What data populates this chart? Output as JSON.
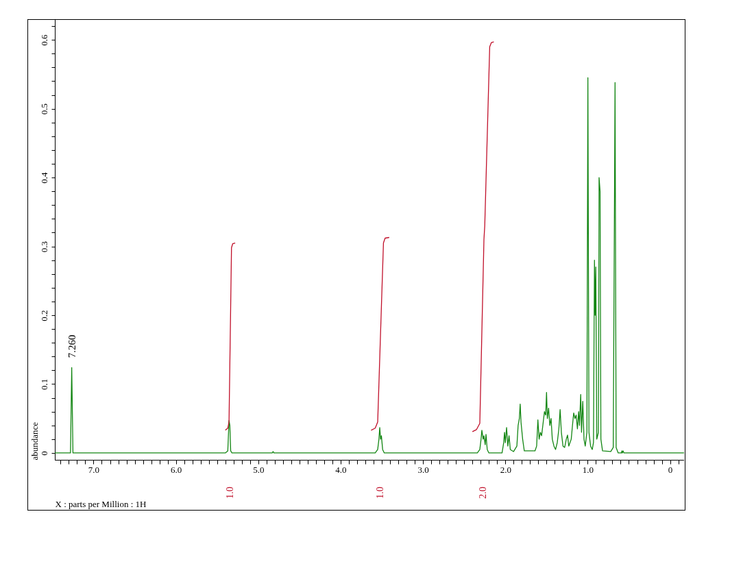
{
  "chart_data": {
    "type": "line",
    "xlabel": "X : parts per Million : 1H",
    "ylabel": "abundance",
    "xlim": [
      7.47,
      -0.17
    ],
    "ylim": [
      -0.01,
      0.63
    ],
    "xticks": [
      {
        "value": 7.4,
        "label": null
      },
      {
        "value": 7.3,
        "label": null
      },
      {
        "value": 7.2,
        "label": null
      },
      {
        "value": 7.1,
        "label": null
      },
      {
        "value": 7,
        "label": "7.0"
      },
      {
        "value": 6.9,
        "label": null
      },
      {
        "value": 6.8,
        "label": null
      },
      {
        "value": 6.7,
        "label": null
      },
      {
        "value": 6.6,
        "label": null
      },
      {
        "value": 6.5,
        "label": null
      },
      {
        "value": 6.4,
        "label": null
      },
      {
        "value": 6.3,
        "label": null
      },
      {
        "value": 6.2,
        "label": null
      },
      {
        "value": 6.1,
        "label": null
      },
      {
        "value": 6,
        "label": "6.0"
      },
      {
        "value": 5.9,
        "label": null
      },
      {
        "value": 5.8,
        "label": null
      },
      {
        "value": 5.7,
        "label": null
      },
      {
        "value": 5.6,
        "label": null
      },
      {
        "value": 5.5,
        "label": null
      },
      {
        "value": 5.4,
        "label": null
      },
      {
        "value": 5.3,
        "label": null
      },
      {
        "value": 5.2,
        "label": null
      },
      {
        "value": 5.1,
        "label": null
      },
      {
        "value": 5,
        "label": "5.0"
      },
      {
        "value": 4.9,
        "label": null
      },
      {
        "value": 4.8,
        "label": null
      },
      {
        "value": 4.7,
        "label": null
      },
      {
        "value": 4.6,
        "label": null
      },
      {
        "value": 4.5,
        "label": null
      },
      {
        "value": 4.4,
        "label": null
      },
      {
        "value": 4.3,
        "label": null
      },
      {
        "value": 4.2,
        "label": null
      },
      {
        "value": 4.1,
        "label": null
      },
      {
        "value": 4,
        "label": "4.0"
      },
      {
        "value": 3.9,
        "label": null
      },
      {
        "value": 3.8,
        "label": null
      },
      {
        "value": 3.7,
        "label": null
      },
      {
        "value": 3.6,
        "label": null
      },
      {
        "value": 3.5,
        "label": null
      },
      {
        "value": 3.4,
        "label": null
      },
      {
        "value": 3.3,
        "label": null
      },
      {
        "value": 3.2,
        "label": null
      },
      {
        "value": 3.1,
        "label": null
      },
      {
        "value": 3,
        "label": "3.0"
      },
      {
        "value": 2.9,
        "label": null
      },
      {
        "value": 2.8,
        "label": null
      },
      {
        "value": 2.7,
        "label": null
      },
      {
        "value": 2.6,
        "label": null
      },
      {
        "value": 2.5,
        "label": null
      },
      {
        "value": 2.4,
        "label": null
      },
      {
        "value": 2.3,
        "label": null
      },
      {
        "value": 2.2,
        "label": null
      },
      {
        "value": 2.1,
        "label": null
      },
      {
        "value": 2,
        "label": "2.0"
      },
      {
        "value": 1.9,
        "label": null
      },
      {
        "value": 1.8,
        "label": null
      },
      {
        "value": 1.7,
        "label": null
      },
      {
        "value": 1.6,
        "label": null
      },
      {
        "value": 1.5,
        "label": null
      },
      {
        "value": 1.4,
        "label": null
      },
      {
        "value": 1.3,
        "label": null
      },
      {
        "value": 1.2,
        "label": null
      },
      {
        "value": 1.1,
        "label": null
      },
      {
        "value": 1,
        "label": "1.0"
      },
      {
        "value": 0.9,
        "label": null
      },
      {
        "value": 0.8,
        "label": null
      },
      {
        "value": 0.7,
        "label": null
      },
      {
        "value": 0.6,
        "label": null
      },
      {
        "value": 0.5,
        "label": null
      },
      {
        "value": 0.4,
        "label": null
      },
      {
        "value": 0.3,
        "label": null
      },
      {
        "value": 0.2,
        "label": null
      },
      {
        "value": 0.1,
        "label": null
      },
      0,
      {
        "value": -0.1,
        "label": null
      }
    ],
    "yticks": [
      0,
      {
        "value": 0.02,
        "label": null
      },
      {
        "value": 0.04,
        "label": null
      },
      {
        "value": 0.06,
        "label": null
      },
      {
        "value": 0.08,
        "label": null
      },
      0.1,
      {
        "value": 0.12,
        "label": null
      },
      {
        "value": 0.14,
        "label": null
      },
      {
        "value": 0.16,
        "label": null
      },
      {
        "value": 0.18,
        "label": null
      },
      0.2,
      {
        "value": 0.22,
        "label": null
      },
      {
        "value": 0.24,
        "label": null
      },
      {
        "value": 0.26,
        "label": null
      },
      {
        "value": 0.28,
        "label": null
      },
      0.3,
      {
        "value": 0.32,
        "label": null
      },
      {
        "value": 0.34,
        "label": null
      },
      {
        "value": 0.36,
        "label": null
      },
      {
        "value": 0.38,
        "label": null
      },
      0.4,
      {
        "value": 0.42,
        "label": null
      },
      {
        "value": 0.44,
        "label": null
      },
      {
        "value": 0.46,
        "label": null
      },
      {
        "value": 0.48,
        "label": null
      },
      0.5,
      {
        "value": 0.52,
        "label": null
      },
      {
        "value": 0.54,
        "label": null
      },
      {
        "value": 0.56,
        "label": null
      },
      {
        "value": 0.58,
        "label": null
      },
      0.6,
      {
        "value": 0.62,
        "label": null
      }
    ],
    "annotations": [
      {
        "text": "7.260",
        "x": 7.26,
        "y": 0.124
      },
      "1.0",
      "1.0",
      "2.0"
    ],
    "series": [
      {
        "type": "line",
        "color": "#138613",
        "x": [
          7.47,
          7.28,
          7.265,
          7.25,
          5.4,
          5.37,
          5.355,
          5.345,
          5.335,
          5.32,
          4.83,
          4.82,
          4.81,
          3.58,
          3.55,
          3.535,
          3.525,
          3.515,
          3.505,
          3.49,
          3.47,
          2.34,
          2.31,
          2.295,
          2.285,
          2.27,
          2.26,
          2.245,
          2.235,
          2.22,
          2.2,
          2.04,
          2.02,
          2.01,
          2.0,
          1.985,
          1.97,
          1.955,
          1.94,
          1.9,
          1.86,
          1.845,
          1.83,
          1.82,
          1.81,
          1.79,
          1.77,
          1.64,
          1.62,
          1.605,
          1.59,
          1.575,
          1.56,
          1.54,
          1.525,
          1.51,
          1.5,
          1.49,
          1.475,
          1.46,
          1.445,
          1.43,
          1.41,
          1.39,
          1.37,
          1.35,
          1.335,
          1.32,
          1.3,
          1.28,
          1.26,
          1.245,
          1.23,
          1.2,
          1.185,
          1.17,
          1.155,
          1.14,
          1.125,
          1.11,
          1.1,
          1.085,
          1.075,
          1.06,
          1.045,
          1.03,
          1.01,
          0.998,
          0.985,
          0.965,
          0.945,
          0.93,
          0.918,
          0.91,
          0.902,
          0.89,
          0.87,
          0.862,
          0.856,
          0.85,
          0.84,
          0.82,
          0.72,
          0.69,
          0.668,
          0.655,
          0.63,
          0.59,
          0.585,
          0.58,
          0.57,
          0.56,
          -0.17
        ],
        "values": [
          0,
          0,
          0.124,
          0,
          0,
          0.003,
          0.047,
          0.04,
          0.003,
          0,
          0,
          0.002,
          0,
          0,
          0.005,
          0.02,
          0.037,
          0.02,
          0.025,
          0.005,
          0,
          0,
          0.005,
          0.02,
          0.033,
          0.02,
          0.025,
          0.012,
          0.027,
          0.005,
          0,
          0,
          0.015,
          0.03,
          0.015,
          0.037,
          0.01,
          0.025,
          0.005,
          0.002,
          0.01,
          0.04,
          0.05,
          0.071,
          0.045,
          0.02,
          0.003,
          0.003,
          0.01,
          0.048,
          0.02,
          0.03,
          0.025,
          0.045,
          0.06,
          0.055,
          0.088,
          0.05,
          0.065,
          0.04,
          0.05,
          0.02,
          0.01,
          0.005,
          0.015,
          0.035,
          0.063,
          0.03,
          0.01,
          0.008,
          0.02,
          0.026,
          0.01,
          0.02,
          0.04,
          0.058,
          0.05,
          0.055,
          0.035,
          0.06,
          0.04,
          0.085,
          0.03,
          0.075,
          0.02,
          0.01,
          0.03,
          0.545,
          0.03,
          0.01,
          0.005,
          0.015,
          0.28,
          0.2,
          0.27,
          0.02,
          0.03,
          0.4,
          0.39,
          0.38,
          0.02,
          0.003,
          0.002,
          0.008,
          0.538,
          0.008,
          0,
          0,
          0.003,
          0,
          0.003,
          0,
          0
        ]
      },
      {
        "type": "line",
        "color": "#c0102a",
        "x": [
          5.4,
          5.37,
          5.355,
          5.325,
          5.31,
          5.28
        ],
        "values": [
          0.033,
          0.036,
          0.045,
          0.298,
          0.304,
          0.305
        ]
      },
      {
        "type": "line",
        "color": "#c0102a",
        "x": [
          3.63,
          3.58,
          3.55,
          3.48,
          3.46,
          3.41
        ],
        "values": [
          0.033,
          0.036,
          0.045,
          0.305,
          0.312,
          0.313
        ]
      },
      {
        "type": "line",
        "color": "#c0102a",
        "x": [
          2.4,
          2.35,
          2.31,
          2.26,
          2.25,
          2.19,
          2.17,
          2.14
        ],
        "values": [
          0.031,
          0.034,
          0.043,
          0.31,
          0.33,
          0.59,
          0.596,
          0.597
        ]
      }
    ]
  }
}
